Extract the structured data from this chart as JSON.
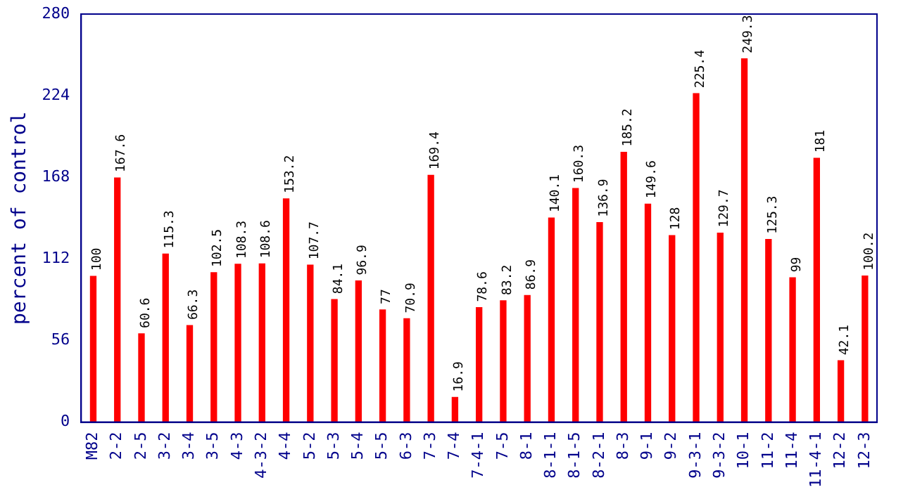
{
  "chart_data": {
    "type": "bar",
    "ylabel": "percent of control",
    "categories": [
      "M82",
      "2-2",
      "2-5",
      "3-2",
      "3-4",
      "3-5",
      "4-3",
      "4-3-2",
      "4-4",
      "5-2",
      "5-3",
      "5-4",
      "5-5",
      "6-3",
      "7-3",
      "7-4",
      "7-4-1",
      "7-5",
      "8-1",
      "8-1-1",
      "8-1-5",
      "8-2-1",
      "8-3",
      "9-1",
      "9-2",
      "9-3-1",
      "9-3-2",
      "10-1",
      "11-2",
      "11-4",
      "11-4-1",
      "12-2",
      "12-3"
    ],
    "values": [
      100,
      167.6,
      60.6,
      115.3,
      66.3,
      102.5,
      108.3,
      108.6,
      153.2,
      107.7,
      84.1,
      96.9,
      77,
      70.9,
      169.4,
      16.9,
      78.6,
      83.2,
      86.9,
      140.1,
      160.3,
      136.9,
      185.2,
      149.6,
      128,
      225.4,
      129.7,
      249.3,
      125.3,
      99,
      181,
      42.1,
      100.2
    ],
    "color": "#ff0000",
    "ylim": [
      0,
      280
    ],
    "yticks": [
      0,
      56,
      112,
      168,
      224,
      280
    ],
    "grid": false,
    "legend": false,
    "data_labels": true
  }
}
